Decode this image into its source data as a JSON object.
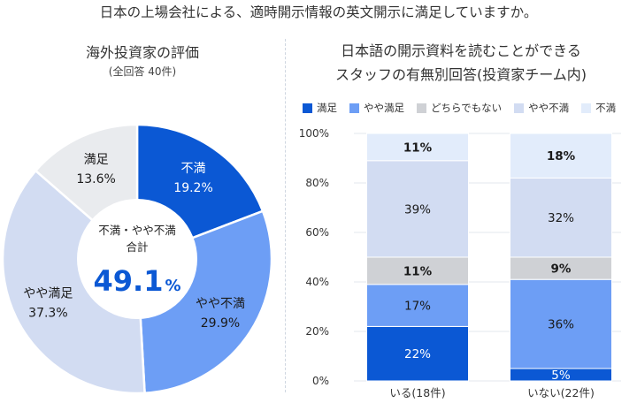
{
  "header": {
    "title": "日本の上場会社による、適時開示情報の英文開示に満足していますか。"
  },
  "chart_data": [
    {
      "type": "pie",
      "title": "海外投資家の評価",
      "subtitle": "(全回答 40件)",
      "center_label": "不満・やや不満\n合計",
      "center_value": "49.1",
      "center_unit": "%",
      "slices": [
        {
          "label": "不満",
          "value": 19.2,
          "display": "19.2%",
          "color": "#0b58d4",
          "text_color": "#ffffff"
        },
        {
          "label": "やや不満",
          "value": 29.9,
          "display": "29.9%",
          "color": "#6d9ef5",
          "text_color": "#1a1a1a"
        },
        {
          "label": "やや満足",
          "value": 37.3,
          "display": "37.3%",
          "color": "#d2dcf2",
          "text_color": "#1a1a1a"
        },
        {
          "label": "満足",
          "value": 13.6,
          "display": "13.6%",
          "color": "#e9ebee",
          "text_color": "#1a1a1a"
        }
      ]
    },
    {
      "type": "bar",
      "stacked": true,
      "title": "日本語の開示資料を読むことができる\nスタッフの有無別回答(投資家チーム内)",
      "categories": [
        "いる(18件)",
        "いない(22件)"
      ],
      "y_ticks": [
        "0%",
        "20%",
        "40%",
        "60%",
        "80%",
        "100%"
      ],
      "ylim": [
        0,
        100
      ],
      "legend_position": "top",
      "series": [
        {
          "name": "満足",
          "color": "#0b58d4",
          "text_color": "#ffffff",
          "values": [
            22,
            5
          ],
          "labels": [
            "22%",
            "5%"
          ]
        },
        {
          "name": "やや満足",
          "color": "#6d9ef5",
          "text_color": "#1a1a1a",
          "values": [
            17,
            36
          ],
          "labels": [
            "17%",
            "36%"
          ]
        },
        {
          "name": "どちらでもない",
          "color": "#cfd1d5",
          "text_color": "#1a1a1a",
          "values": [
            11,
            9
          ],
          "labels": [
            "11%",
            "9%"
          ]
        },
        {
          "name": "やや不満",
          "color": "#d2dcf2",
          "text_color": "#1a1a1a",
          "values": [
            39,
            32
          ],
          "labels": [
            "39%",
            "32%"
          ]
        },
        {
          "name": "不満",
          "color": "#e2ecfb",
          "text_color": "#1a1a1a",
          "values": [
            11,
            18
          ],
          "labels": [
            "11%",
            "18%"
          ]
        }
      ]
    }
  ]
}
